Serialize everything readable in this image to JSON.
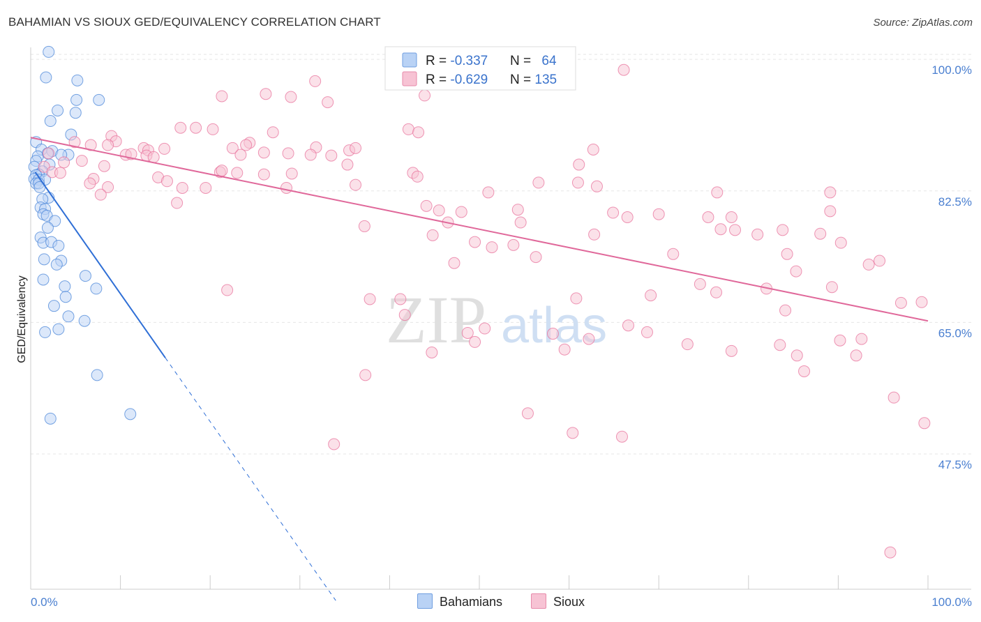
{
  "chart_data": {
    "type": "scatter",
    "title": "BAHAMIAN VS SIOUX GED/EQUIVALENCY CORRELATION CHART",
    "source": "Source: ZipAtlas.com",
    "xlabel": "",
    "ylabel": "GED/Equivalency",
    "xlim": [
      0,
      100
    ],
    "ylim": [
      29.5,
      101.5
    ],
    "x_tick_labels": [
      "0.0%",
      "100.0%"
    ],
    "y_ticks": [
      47.5,
      65.0,
      82.5,
      100.0
    ],
    "y_tick_labels": [
      "47.5%",
      "65.0%",
      "82.5%",
      "100.0%"
    ],
    "watermark": {
      "zip": "ZIP",
      "atlas": "atlas"
    },
    "colors": {
      "bahamians": "#4a86d8",
      "sioux": "#e8739c",
      "bahamians_fill": "#b9d2f5",
      "sioux_fill": "#f7c3d4",
      "axis_text": "#4a7fd0"
    },
    "legend_stats": [
      {
        "r_label": "R = ",
        "r_value": "-0.337",
        "n_label": "N = ",
        "n_value": "64"
      },
      {
        "r_label": "R = ",
        "r_value": "-0.629",
        "n_label": "N = ",
        "n_value": "135"
      }
    ],
    "series": [
      {
        "name": "Bahamians",
        "trendline": {
          "x": [
            0.5,
            15.0
          ],
          "y": [
            85.0,
            60.3
          ],
          "dashed_to": [
            34.0,
            28.0
          ]
        },
        "points": [
          [
            2.0,
            101.0
          ],
          [
            1.7,
            97.6
          ],
          [
            5.2,
            97.2
          ],
          [
            5.1,
            94.6
          ],
          [
            7.6,
            94.6
          ],
          [
            3.0,
            93.2
          ],
          [
            5.0,
            92.9
          ],
          [
            2.2,
            91.8
          ],
          [
            4.5,
            90.0
          ],
          [
            0.6,
            89.0
          ],
          [
            1.2,
            88.0
          ],
          [
            2.4,
            87.8
          ],
          [
            0.8,
            87.1
          ],
          [
            1.9,
            87.5
          ],
          [
            4.2,
            87.3
          ],
          [
            3.4,
            87.3
          ],
          [
            0.6,
            86.5
          ],
          [
            2.1,
            86.0
          ],
          [
            0.4,
            85.7
          ],
          [
            1.3,
            85.1
          ],
          [
            0.9,
            84.7
          ],
          [
            0.6,
            84.6
          ],
          [
            0.4,
            84.1
          ],
          [
            0.9,
            84.0
          ],
          [
            1.6,
            84.0
          ],
          [
            0.6,
            83.5
          ],
          [
            0.9,
            83.5
          ],
          [
            1.0,
            83.0
          ],
          [
            2.0,
            81.6
          ],
          [
            1.3,
            81.4
          ],
          [
            1.1,
            80.3
          ],
          [
            1.6,
            80.1
          ],
          [
            1.4,
            79.4
          ],
          [
            1.8,
            79.2
          ],
          [
            2.7,
            78.5
          ],
          [
            1.9,
            77.6
          ],
          [
            1.1,
            76.3
          ],
          [
            1.4,
            75.6
          ],
          [
            2.3,
            75.7
          ],
          [
            3.1,
            75.2
          ],
          [
            1.5,
            73.4
          ],
          [
            3.4,
            73.2
          ],
          [
            2.9,
            72.7
          ],
          [
            6.1,
            71.2
          ],
          [
            1.4,
            70.7
          ],
          [
            3.8,
            69.8
          ],
          [
            7.3,
            69.5
          ],
          [
            3.9,
            68.4
          ],
          [
            2.6,
            67.2
          ],
          [
            4.2,
            65.8
          ],
          [
            6.0,
            65.2
          ],
          [
            3.1,
            64.1
          ],
          [
            1.6,
            63.7
          ],
          [
            7.4,
            58.0
          ],
          [
            2.2,
            52.2
          ],
          [
            11.1,
            52.8
          ]
        ]
      },
      {
        "name": "Sioux",
        "trendline": {
          "x": [
            0.0,
            100.0
          ],
          "y": [
            89.6,
            65.2
          ]
        },
        "points": [
          [
            66.1,
            98.6
          ],
          [
            31.7,
            97.1
          ],
          [
            26.2,
            95.4
          ],
          [
            21.3,
            95.1
          ],
          [
            29.0,
            95.0
          ],
          [
            33.1,
            94.3
          ],
          [
            43.9,
            95.2
          ],
          [
            16.7,
            90.9
          ],
          [
            18.4,
            90.9
          ],
          [
            20.3,
            90.7
          ],
          [
            9.0,
            89.8
          ],
          [
            9.5,
            89.1
          ],
          [
            4.9,
            89.0
          ],
          [
            6.7,
            88.6
          ],
          [
            42.1,
            90.7
          ],
          [
            43.2,
            90.3
          ],
          [
            27.0,
            90.3
          ],
          [
            24.4,
            88.9
          ],
          [
            24.0,
            88.6
          ],
          [
            31.8,
            88.3
          ],
          [
            35.5,
            87.9
          ],
          [
            36.2,
            88.2
          ],
          [
            22.5,
            88.2
          ],
          [
            62.7,
            88.0
          ],
          [
            8.6,
            88.6
          ],
          [
            12.6,
            88.2
          ],
          [
            13.1,
            87.9
          ],
          [
            14.9,
            88.1
          ],
          [
            10.6,
            87.3
          ],
          [
            11.2,
            87.4
          ],
          [
            12.9,
            87.2
          ],
          [
            13.7,
            87.0
          ],
          [
            26.0,
            87.6
          ],
          [
            23.4,
            87.3
          ],
          [
            28.7,
            87.5
          ],
          [
            31.2,
            87.3
          ],
          [
            33.5,
            87.2
          ],
          [
            2.0,
            87.5
          ],
          [
            1.5,
            85.7
          ],
          [
            3.7,
            86.3
          ],
          [
            5.7,
            86.5
          ],
          [
            8.2,
            85.8
          ],
          [
            21.1,
            85.0
          ],
          [
            23.0,
            84.9
          ],
          [
            29.1,
            84.8
          ],
          [
            35.3,
            86.0
          ],
          [
            42.6,
            84.9
          ],
          [
            43.1,
            84.4
          ],
          [
            7.0,
            84.1
          ],
          [
            14.2,
            84.3
          ],
          [
            15.2,
            83.8
          ],
          [
            21.3,
            85.2
          ],
          [
            26.0,
            84.7
          ],
          [
            28.5,
            82.9
          ],
          [
            2.4,
            85.0
          ],
          [
            3.3,
            84.9
          ],
          [
            6.6,
            83.5
          ],
          [
            8.6,
            83.0
          ],
          [
            16.9,
            82.9
          ],
          [
            19.5,
            82.9
          ],
          [
            36.2,
            83.3
          ],
          [
            56.6,
            83.6
          ],
          [
            61.0,
            83.6
          ],
          [
            63.1,
            83.1
          ],
          [
            61.1,
            86.0
          ],
          [
            76.5,
            82.3
          ],
          [
            51.0,
            82.3
          ],
          [
            89.1,
            82.3
          ],
          [
            7.8,
            82.0
          ],
          [
            16.3,
            80.9
          ],
          [
            44.1,
            80.5
          ],
          [
            45.5,
            79.9
          ],
          [
            48.0,
            79.7
          ],
          [
            54.3,
            80.0
          ],
          [
            64.9,
            79.6
          ],
          [
            70.0,
            79.4
          ],
          [
            66.5,
            79.0
          ],
          [
            75.5,
            79.0
          ],
          [
            89.1,
            79.8
          ],
          [
            78.1,
            79.0
          ],
          [
            46.5,
            78.3
          ],
          [
            54.6,
            78.3
          ],
          [
            76.9,
            77.4
          ],
          [
            83.8,
            77.3
          ],
          [
            78.5,
            77.3
          ],
          [
            81.0,
            76.7
          ],
          [
            88.0,
            76.8
          ],
          [
            37.2,
            77.8
          ],
          [
            44.8,
            76.6
          ],
          [
            49.5,
            75.7
          ],
          [
            53.8,
            75.3
          ],
          [
            90.3,
            75.6
          ],
          [
            62.8,
            76.7
          ],
          [
            51.4,
            75.0
          ],
          [
            71.6,
            74.1
          ],
          [
            84.3,
            74.1
          ],
          [
            94.6,
            73.2
          ],
          [
            93.4,
            72.7
          ],
          [
            47.2,
            72.9
          ],
          [
            56.3,
            73.7
          ],
          [
            74.6,
            70.1
          ],
          [
            85.3,
            71.8
          ],
          [
            76.4,
            69.0
          ],
          [
            69.1,
            68.6
          ],
          [
            89.3,
            69.7
          ],
          [
            21.9,
            69.3
          ],
          [
            37.8,
            68.1
          ],
          [
            60.8,
            68.2
          ],
          [
            99.3,
            67.7
          ],
          [
            97.0,
            67.6
          ],
          [
            41.2,
            68.1
          ],
          [
            73.2,
            62.1
          ],
          [
            66.6,
            64.6
          ],
          [
            68.7,
            63.7
          ],
          [
            48.7,
            63.6
          ],
          [
            49.5,
            62.4
          ],
          [
            50.6,
            64.2
          ],
          [
            41.7,
            66.0
          ],
          [
            44.7,
            61.0
          ],
          [
            58.2,
            63.5
          ],
          [
            59.5,
            61.4
          ],
          [
            62.2,
            62.8
          ],
          [
            78.1,
            61.2
          ],
          [
            83.5,
            62.0
          ],
          [
            85.4,
            60.6
          ],
          [
            90.2,
            62.6
          ],
          [
            92.6,
            62.8
          ],
          [
            92.0,
            60.6
          ],
          [
            86.2,
            58.5
          ],
          [
            37.3,
            58.0
          ],
          [
            55.4,
            52.9
          ],
          [
            60.4,
            50.3
          ],
          [
            65.9,
            49.8
          ],
          [
            33.8,
            48.8
          ],
          [
            96.2,
            55.0
          ],
          [
            99.6,
            51.6
          ],
          [
            95.8,
            34.4
          ],
          [
            84.1,
            66.6
          ],
          [
            82.0,
            69.5
          ]
        ]
      }
    ]
  },
  "legend": {
    "bahamians": "Bahamians",
    "sioux": "Sioux"
  }
}
